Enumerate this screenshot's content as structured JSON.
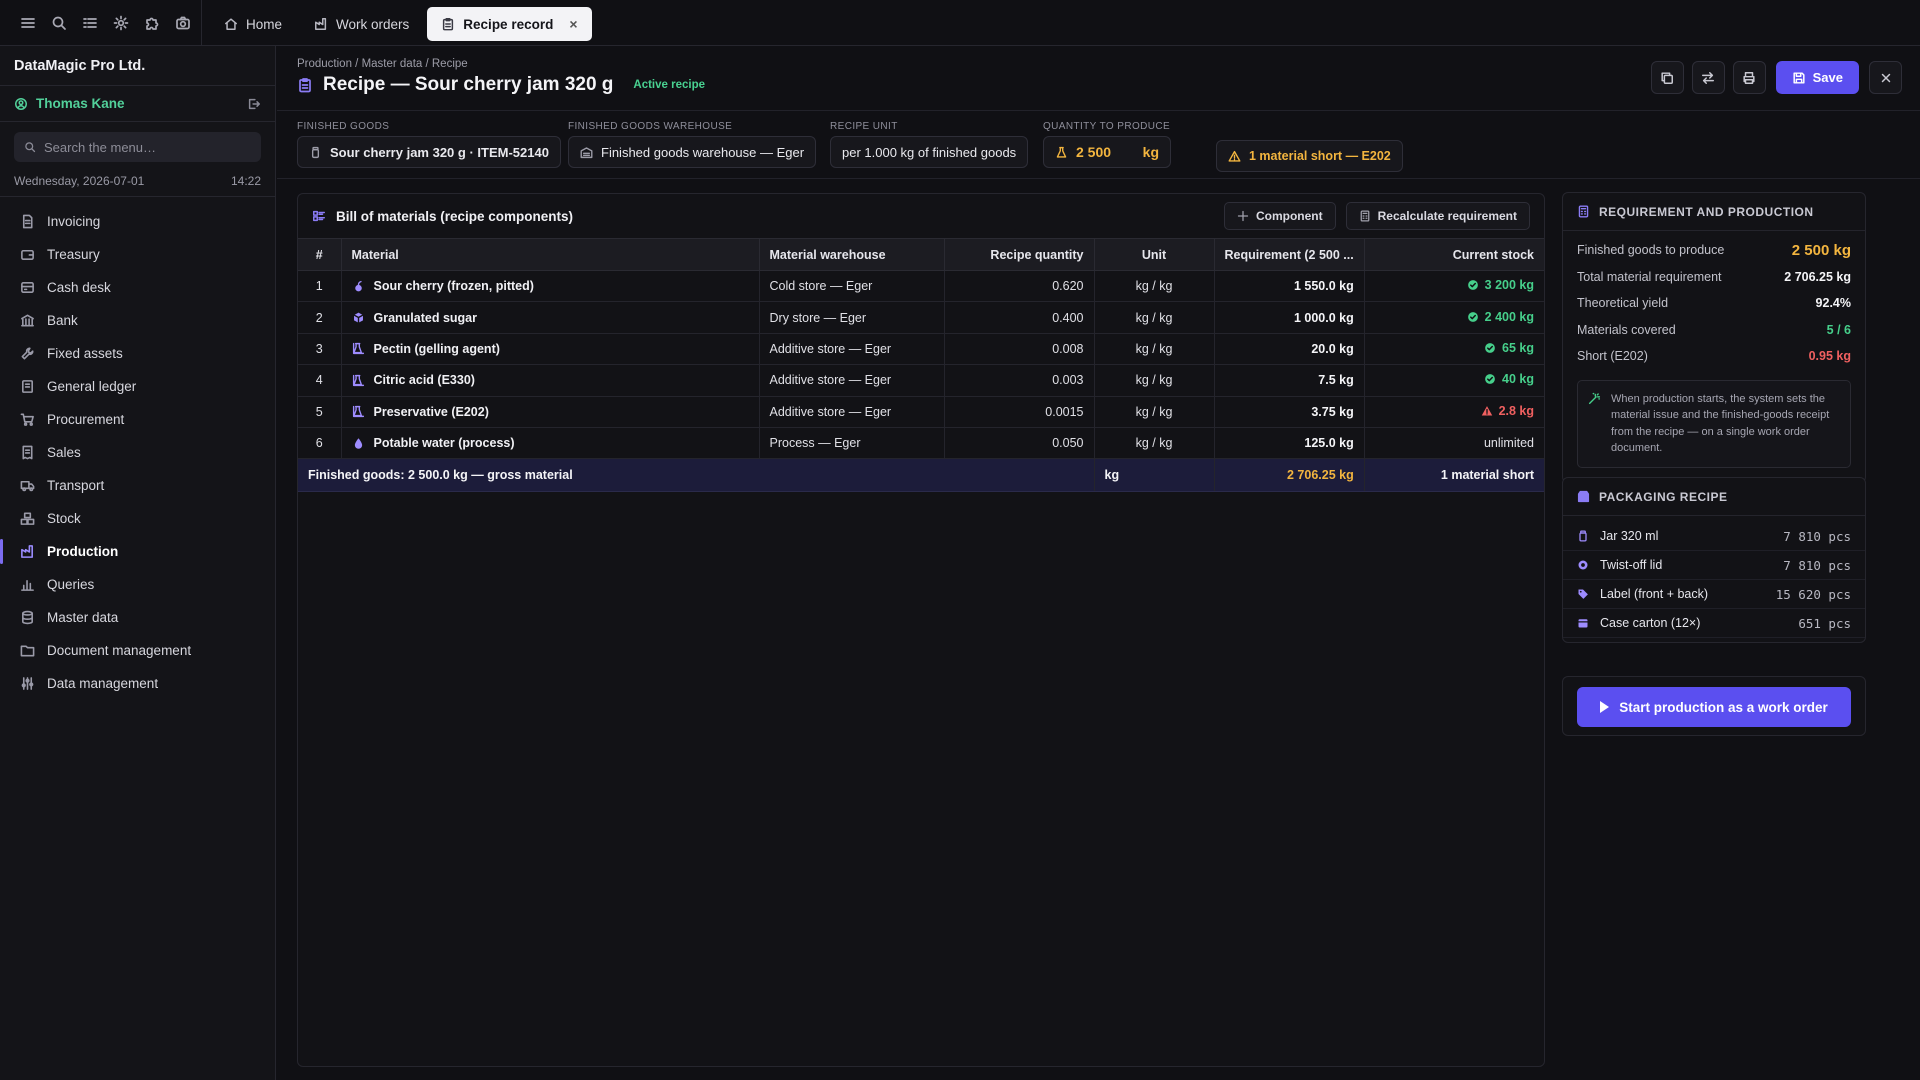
{
  "topbar": {
    "icons": [
      "menu-icon",
      "search-icon",
      "checklist-icon",
      "gear-icon",
      "puzzle-icon",
      "camera-icon"
    ],
    "tabs": [
      {
        "label": "Home",
        "icon": "home-icon"
      },
      {
        "label": "Work orders",
        "icon": "factory-icon"
      },
      {
        "label": "Recipe record",
        "icon": "clipboard-icon",
        "active": true,
        "close": "×"
      }
    ]
  },
  "sidebar": {
    "company": "DataMagic Pro Ltd.",
    "user": "Thomas Kane",
    "search_placeholder": "Search the menu…",
    "date": "Wednesday, 2026-07-01",
    "time": "14:22",
    "items": [
      {
        "label": "Invoicing",
        "icon": "invoice-icon"
      },
      {
        "label": "Treasury",
        "icon": "wallet-icon"
      },
      {
        "label": "Cash desk",
        "icon": "cash-icon"
      },
      {
        "label": "Bank",
        "icon": "bank-icon"
      },
      {
        "label": "Fixed assets",
        "icon": "wrench-icon"
      },
      {
        "label": "General ledger",
        "icon": "ledger-icon"
      },
      {
        "label": "Procurement",
        "icon": "cart-icon"
      },
      {
        "label": "Sales",
        "icon": "receipt-icon"
      },
      {
        "label": "Transport",
        "icon": "truck-icon"
      },
      {
        "label": "Stock",
        "icon": "boxes-icon"
      },
      {
        "label": "Production",
        "icon": "factory-icon",
        "active": true
      },
      {
        "label": "Queries",
        "icon": "chart-icon"
      },
      {
        "label": "Master data",
        "icon": "database-icon"
      },
      {
        "label": "Document management",
        "icon": "folder-icon"
      },
      {
        "label": "Data management",
        "icon": "sliders-icon"
      }
    ]
  },
  "header": {
    "breadcrumb": "Production / Master data / Recipe",
    "title": "Recipe — Sour cherry jam 320 g",
    "status": "Active recipe",
    "save_label": "Save"
  },
  "fields": {
    "finished_goods": {
      "label": "FINISHED GOODS",
      "value": "Sour cherry jam 320 g · ITEM-52140"
    },
    "warehouse": {
      "label": "FINISHED GOODS WAREHOUSE",
      "value": "Finished goods warehouse — Eger"
    },
    "recipe_unit": {
      "label": "RECIPE UNIT",
      "value": "per 1.000 kg of finished goods"
    },
    "quantity": {
      "label": "QUANTITY TO PRODUCE",
      "value": "2 500",
      "unit": "kg"
    },
    "warning": "1 material short — E202"
  },
  "bom": {
    "title": "Bill of materials (recipe components)",
    "add_label": "Component",
    "recalc_label": "Recalculate requirement",
    "columns": [
      "#",
      "Material",
      "Material warehouse",
      "Recipe quantity",
      "Unit",
      "Requirement (2 500 ...",
      "Current stock"
    ],
    "rows": [
      {
        "n": "1",
        "material": "Sour cherry (frozen, pitted)",
        "icon": "cherry-icon",
        "warehouse": "Cold store — Eger",
        "qty": "0.620",
        "unit": "kg / kg",
        "req": "1 550.0 kg",
        "stock": "3 200 kg",
        "status": "ok"
      },
      {
        "n": "2",
        "material": "Granulated sugar",
        "icon": "package-icon",
        "warehouse": "Dry store — Eger",
        "qty": "0.400",
        "unit": "kg / kg",
        "req": "1 000.0 kg",
        "stock": "2 400 kg",
        "status": "ok"
      },
      {
        "n": "3",
        "material": "Pectin (gelling agent)",
        "icon": "flask-icon",
        "warehouse": "Additive store — Eger",
        "qty": "0.008",
        "unit": "kg / kg",
        "req": "20.0 kg",
        "stock": "65 kg",
        "status": "ok"
      },
      {
        "n": "4",
        "material": "Citric acid (E330)",
        "icon": "flask-icon",
        "warehouse": "Additive store — Eger",
        "qty": "0.003",
        "unit": "kg / kg",
        "req": "7.5 kg",
        "stock": "40 kg",
        "status": "ok"
      },
      {
        "n": "5",
        "material": "Preservative (E202)",
        "icon": "flask-icon",
        "warehouse": "Additive store — Eger",
        "qty": "0.0015",
        "unit": "kg / kg",
        "req": "3.75 kg",
        "stock": "2.8 kg",
        "status": "short"
      },
      {
        "n": "6",
        "material": "Potable water (process)",
        "icon": "droplet-icon",
        "warehouse": "Process — Eger",
        "qty": "0.050",
        "unit": "kg / kg",
        "req": "125.0 kg",
        "stock": "unlimited",
        "status": "none"
      }
    ],
    "footer": {
      "label": "Finished goods: 2 500.0 kg — gross material",
      "unit": "kg",
      "req": "2 706.25 kg",
      "stock": "1 material short"
    }
  },
  "requirement": {
    "title": "REQUIREMENT AND PRODUCTION",
    "rows": [
      {
        "label": "Finished goods to produce",
        "value": "2 500 kg"
      },
      {
        "label": "Total material requirement",
        "value": "2 706.25 kg"
      },
      {
        "label": "Theoretical yield",
        "value": "92.4%"
      },
      {
        "label": "Materials covered",
        "value": "5 / 6"
      },
      {
        "label": "Short (E202)",
        "value": "0.95 kg"
      }
    ],
    "note": "When production starts, the system sets the material issue and the finished-goods receipt from the recipe — on a single work order document."
  },
  "packaging": {
    "title": "PACKAGING RECIPE",
    "items": [
      {
        "label": "Jar 320 ml",
        "qty": "7 810 pcs",
        "icon": "jar-icon"
      },
      {
        "label": "Twist-off lid",
        "qty": "7 810 pcs",
        "icon": "lid-icon"
      },
      {
        "label": "Label (front + back)",
        "qty": "15 620 pcs",
        "icon": "tag-icon"
      },
      {
        "label": "Case carton (12×)",
        "qty": "651 pcs",
        "icon": "carton-icon"
      }
    ]
  },
  "action": {
    "start_label": "Start production as a work order"
  },
  "colors": {
    "accent": "#5b4ff0",
    "ok": "#46cf8b",
    "warn": "#f3b53f",
    "error": "#f06060"
  }
}
